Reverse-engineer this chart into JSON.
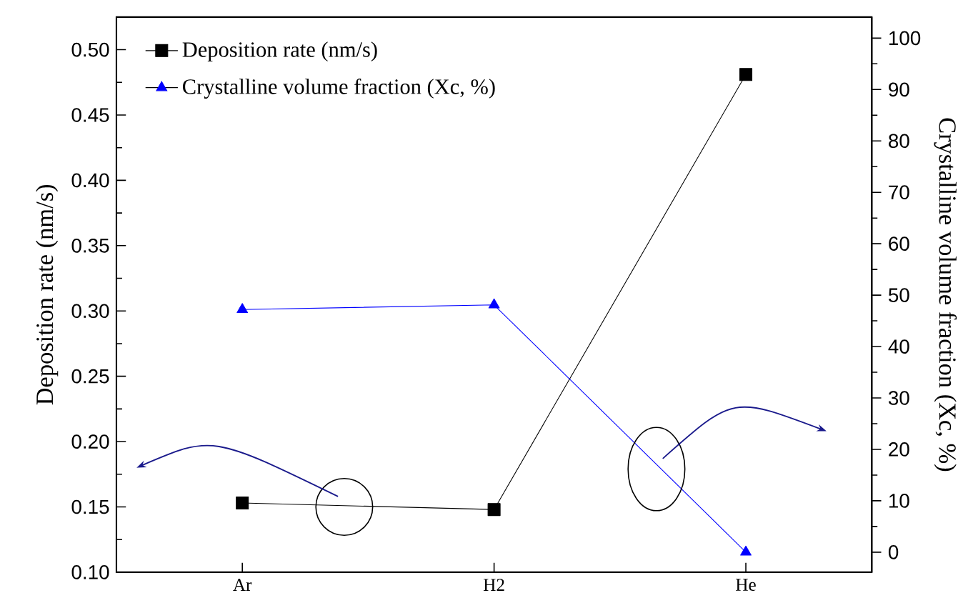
{
  "chart_data": {
    "type": "line",
    "categories": [
      "Ar",
      "H2",
      "He"
    ],
    "series": [
      {
        "name": "Deposition rate (nm/s)",
        "color": "#000000",
        "values": [
          0.153,
          0.148,
          0.481
        ],
        "marker": "square"
      },
      {
        "name": "Crystalline volume fraction (Xc, %)",
        "color": "#0000ff",
        "values": [
          47.2,
          48.1,
          0
        ],
        "marker": "triangle",
        "axis": "y2"
      }
    ],
    "ylabel": "Deposition rate (nm/s)",
    "y2label": "Crystalline volume fraction (Xc, %)",
    "ylim": [
      0.1,
      0.525
    ],
    "yticks": [
      {
        "value": 0.1,
        "label": "0.10"
      },
      {
        "value": 0.15,
        "label": "0.15"
      },
      {
        "value": 0.2,
        "label": "0.20"
      },
      {
        "value": 0.25,
        "label": "0.25"
      },
      {
        "value": 0.3,
        "label": "0.30"
      },
      {
        "value": 0.35,
        "label": "0.35"
      },
      {
        "value": 0.4,
        "label": "0.40"
      },
      {
        "value": 0.45,
        "label": "0.45"
      },
      {
        "value": 0.5,
        "label": "0.50"
      }
    ],
    "y2lim": [
      -3.9,
      104.1
    ],
    "y2ticks": [
      0,
      10,
      20,
      30,
      40,
      50,
      60,
      70,
      80,
      90,
      100
    ],
    "legend": "top left",
    "line_style": "solid"
  }
}
